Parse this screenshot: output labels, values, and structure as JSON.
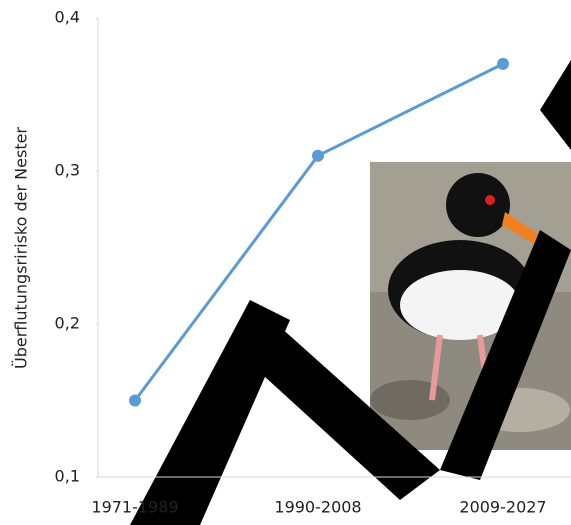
{
  "chart_data": {
    "type": "line",
    "y_label": "Überflutungsririsko der Nester",
    "categories": [
      "1971-1989",
      "1990-2008",
      "2009-2027"
    ],
    "series": [
      {
        "color": "#5b9bd5",
        "values": [
          0.15,
          0.31,
          0.37
        ]
      }
    ],
    "ylim": [
      0.1,
      0.4
    ],
    "yticks": [
      {
        "value": 0.1,
        "label": "0,1"
      },
      {
        "value": 0.2,
        "label": "0,2"
      },
      {
        "value": 0.3,
        "label": "0,3"
      },
      {
        "value": 0.4,
        "label": "0,4"
      }
    ]
  }
}
